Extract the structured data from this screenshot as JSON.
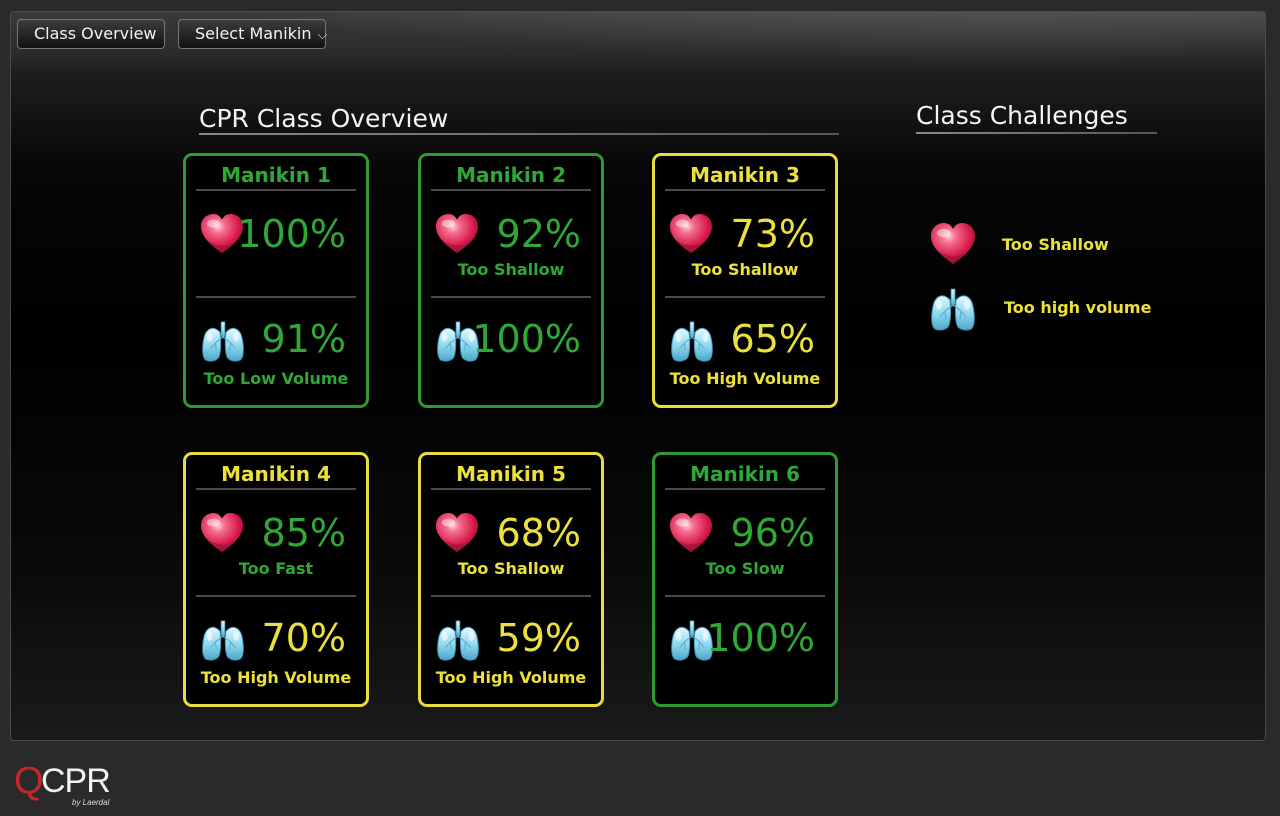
{
  "toolbar": {
    "class_overview": "Class Overview",
    "select_manikin": "Select Manikin"
  },
  "overview": {
    "title": "CPR Class Overview"
  },
  "challenges": {
    "title": "Class Challenges",
    "items": [
      {
        "icon": "heart-icon",
        "label": "Too Shallow"
      },
      {
        "icon": "lungs-icon",
        "label": "Too high volume"
      }
    ]
  },
  "colors": {
    "good": "#2fa835",
    "warning": "#ece13c",
    "background": "#000000"
  },
  "manikins": [
    {
      "name": "Manikin 1",
      "status": "good",
      "compression_pct": "100%",
      "compression_status": "good",
      "compression_note": "",
      "ventilation_pct": "91%",
      "ventilation_status": "good",
      "ventilation_note": "Too Low Volume",
      "ventilation_note_status": "good"
    },
    {
      "name": "Manikin 2",
      "status": "good",
      "compression_pct": "92%",
      "compression_status": "good",
      "compression_note": "Too Shallow",
      "compression_note_status": "good",
      "ventilation_pct": "100%",
      "ventilation_status": "good",
      "ventilation_note": ""
    },
    {
      "name": "Manikin 3",
      "status": "warning",
      "compression_pct": "73%",
      "compression_status": "warning",
      "compression_note": "Too Shallow",
      "compression_note_status": "warning",
      "ventilation_pct": "65%",
      "ventilation_status": "warning",
      "ventilation_note": "Too High Volume",
      "ventilation_note_status": "warning"
    },
    {
      "name": "Manikin 4",
      "status": "warning",
      "compression_pct": "85%",
      "compression_status": "good",
      "compression_note": "Too Fast",
      "compression_note_status": "good",
      "ventilation_pct": "70%",
      "ventilation_status": "warning",
      "ventilation_note": "Too High Volume",
      "ventilation_note_status": "warning"
    },
    {
      "name": "Manikin 5",
      "status": "warning",
      "compression_pct": "68%",
      "compression_status": "warning",
      "compression_note": "Too Shallow",
      "compression_note_status": "warning",
      "ventilation_pct": "59%",
      "ventilation_status": "warning",
      "ventilation_note": "Too High Volume",
      "ventilation_note_status": "warning"
    },
    {
      "name": "Manikin 6",
      "status": "good",
      "compression_pct": "96%",
      "compression_status": "good",
      "compression_note": "Too Slow",
      "compression_note_status": "good",
      "ventilation_pct": "100%",
      "ventilation_status": "good",
      "ventilation_note": ""
    }
  ],
  "logo": {
    "q": "Q",
    "cpr": "CPR",
    "by": "by Laerdal"
  }
}
